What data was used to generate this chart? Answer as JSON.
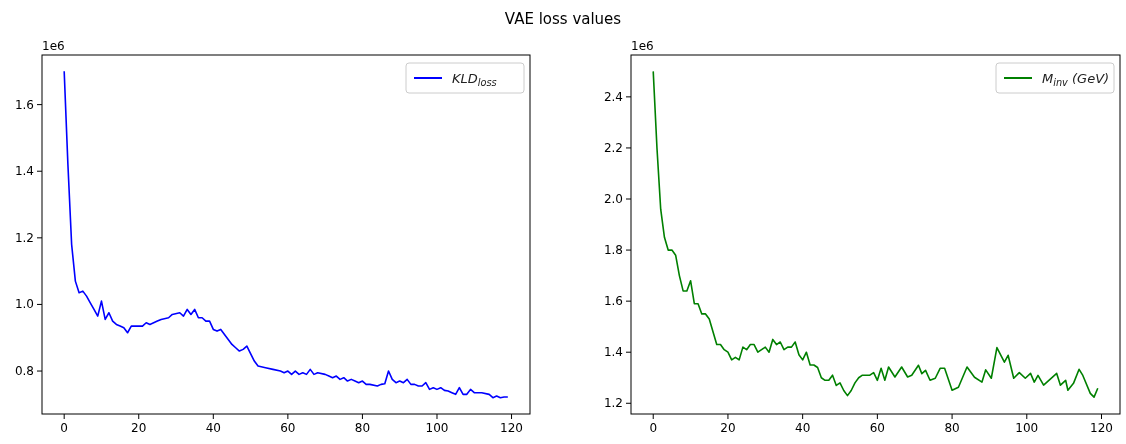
{
  "chart_data": [
    {
      "type": "line",
      "title": "VAE loss values",
      "annotations": [
        "1e6"
      ],
      "legend": "top right",
      "grid": false,
      "xlim": [
        -5.95,
        124.95
      ],
      "xticks": [
        0,
        20,
        40,
        60,
        80,
        100,
        120
      ],
      "ylim": [
        0.671,
        1.749
      ],
      "yticks": [
        0.8,
        {
          "value": 1,
          "label": "1.0"
        },
        1.2,
        1.4,
        1.6
      ],
      "series": [
        {
          "name": "KLD$_{loss}$",
          "color": "#0000ff",
          "x": [
            0,
            1,
            2,
            3,
            4,
            5,
            6,
            7,
            8,
            9,
            10,
            11,
            12,
            13,
            14,
            15,
            16,
            17,
            18,
            20,
            21,
            22,
            23,
            25,
            26,
            28,
            29,
            31,
            32,
            33,
            34,
            35,
            36,
            37,
            38,
            39,
            40,
            41,
            42,
            44,
            45,
            46,
            47,
            48,
            49,
            51,
            52,
            54,
            56,
            58,
            59,
            60,
            61,
            62,
            63,
            64,
            65,
            66,
            67,
            68,
            70,
            71,
            72,
            73,
            74,
            75,
            76,
            77,
            78,
            79,
            80,
            81,
            82,
            84,
            85,
            86,
            87,
            88,
            89,
            90,
            91,
            92,
            93,
            94,
            95,
            96,
            97,
            98,
            99,
            100,
            101,
            102,
            103,
            104,
            105,
            106,
            107,
            108,
            109,
            110,
            112,
            114,
            115,
            116,
            117,
            118,
            119
          ],
          "values": [
            1.7,
            1.42,
            1.18,
            1.07,
            1.035,
            1.04,
            1.025,
            1.005,
            0.985,
            0.965,
            1.01,
            0.955,
            0.975,
            0.95,
            0.94,
            0.935,
            0.93,
            0.915,
            0.935,
            0.935,
            0.935,
            0.945,
            0.94,
            0.95,
            0.955,
            0.96,
            0.97,
            0.975,
            0.965,
            0.985,
            0.97,
            0.985,
            0.96,
            0.96,
            0.95,
            0.95,
            0.925,
            0.92,
            0.925,
            0.895,
            0.88,
            0.87,
            0.86,
            0.865,
            0.875,
            0.83,
            0.815,
            0.81,
            0.805,
            0.8,
            0.795,
            0.8,
            0.79,
            0.8,
            0.79,
            0.795,
            0.79,
            0.805,
            0.79,
            0.795,
            0.79,
            0.785,
            0.78,
            0.785,
            0.775,
            0.78,
            0.77,
            0.775,
            0.77,
            0.765,
            0.77,
            0.76,
            0.76,
            0.755,
            0.76,
            0.762,
            0.8,
            0.775,
            0.765,
            0.77,
            0.765,
            0.775,
            0.76,
            0.76,
            0.755,
            0.755,
            0.765,
            0.745,
            0.75,
            0.745,
            0.75,
            0.742,
            0.74,
            0.735,
            0.73,
            0.75,
            0.73,
            0.73,
            0.745,
            0.735,
            0.735,
            0.73,
            0.72,
            0.725,
            0.72,
            0.722,
            0.722
          ]
        }
      ]
    },
    {
      "type": "line",
      "annotations": [
        "1e6"
      ],
      "legend": "top right",
      "grid": false,
      "xlim": [
        -5.95,
        124.95
      ],
      "xticks": [
        0,
        20,
        40,
        60,
        80,
        100,
        120
      ],
      "ylim": [
        1.158,
        2.564
      ],
      "yticks": [
        1.2,
        1.4,
        1.6,
        1.8,
        {
          "value": 2,
          "label": "2.0"
        },
        2.2,
        2.4
      ],
      "series": [
        {
          "name": "M$_{inv}$ (GeV)",
          "color": "#008000",
          "x": [
            0,
            1,
            2,
            3,
            4,
            5,
            6,
            7,
            8,
            9,
            10,
            11,
            12,
            13,
            14,
            15,
            16,
            17,
            18,
            19,
            20,
            21,
            22,
            23,
            24,
            25,
            26,
            27,
            28,
            29,
            30,
            31,
            32,
            33,
            34,
            35,
            36,
            37,
            38,
            39,
            40,
            41,
            42,
            43,
            44,
            45,
            46,
            47,
            48,
            49,
            50,
            51,
            52,
            53,
            54,
            55,
            56,
            57,
            58,
            59,
            60,
            61,
            62,
            63,
            64.7,
            66.5,
            68.1,
            69.2,
            71,
            71.9,
            72.9,
            74.1,
            75.5,
            76.8,
            78,
            80,
            81.7,
            84,
            86,
            88,
            89,
            90.5,
            92,
            94,
            95,
            96.5,
            98,
            99.6,
            101,
            102,
            103,
            104.5,
            108,
            109,
            110.4,
            111,
            112.5,
            114,
            115,
            117,
            118,
            119
          ],
          "values": [
            2.5,
            2.2,
            1.96,
            1.85,
            1.8,
            1.8,
            1.78,
            1.7,
            1.64,
            1.64,
            1.68,
            1.59,
            1.59,
            1.55,
            1.55,
            1.53,
            1.48,
            1.43,
            1.43,
            1.41,
            1.4,
            1.37,
            1.38,
            1.37,
            1.42,
            1.41,
            1.43,
            1.43,
            1.4,
            1.41,
            1.42,
            1.4,
            1.45,
            1.43,
            1.44,
            1.41,
            1.42,
            1.42,
            1.44,
            1.39,
            1.37,
            1.4,
            1.35,
            1.35,
            1.34,
            1.3,
            1.29,
            1.29,
            1.31,
            1.27,
            1.28,
            1.25,
            1.23,
            1.25,
            1.28,
            1.3,
            1.31,
            1.31,
            1.31,
            1.32,
            1.29,
            1.337,
            1.29,
            1.342,
            1.303,
            1.342,
            1.303,
            1.31,
            1.349,
            1.316,
            1.329,
            1.29,
            1.298,
            1.337,
            1.337,
            1.251,
            1.263,
            1.342,
            1.302,
            1.283,
            1.331,
            1.298,
            1.418,
            1.361,
            1.388,
            1.298,
            1.32,
            1.298,
            1.317,
            1.283,
            1.309,
            1.271,
            1.317,
            1.271,
            1.29,
            1.251,
            1.278,
            1.333,
            1.309,
            1.239,
            1.224,
            1.259
          ]
        }
      ]
    }
  ]
}
